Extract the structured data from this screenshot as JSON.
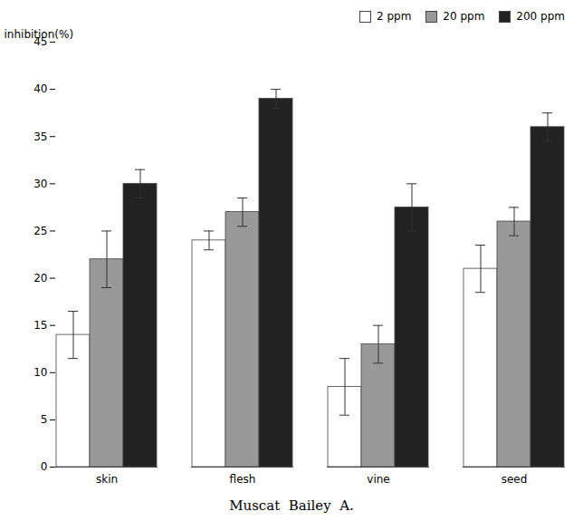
{
  "chart_data": {
    "type": "bar",
    "categories": [
      "skin",
      "flesh",
      "vine",
      "seed"
    ],
    "series": [
      {
        "name": "2 ppm",
        "color": "#ffffff",
        "values": [
          14,
          24,
          8.5,
          21
        ],
        "errors": [
          2.5,
          1.0,
          3.0,
          2.5
        ]
      },
      {
        "name": "20 ppm",
        "color": "#999999",
        "values": [
          22,
          27,
          13,
          26
        ],
        "errors": [
          3.0,
          1.5,
          2.0,
          1.5
        ]
      },
      {
        "name": "200 ppm",
        "color": "#222222",
        "values": [
          30,
          39,
          27.5,
          36
        ],
        "errors": [
          1.5,
          1.0,
          2.5,
          1.5
        ]
      }
    ],
    "ylabel": "inhibition(%)",
    "xlabel": "Muscat  Bailey  A.",
    "ylim": [
      0,
      45
    ],
    "yticks": [
      0,
      5,
      10,
      15,
      20,
      25,
      30,
      35,
      40,
      45
    ],
    "grid": false,
    "legend": "upper right"
  }
}
